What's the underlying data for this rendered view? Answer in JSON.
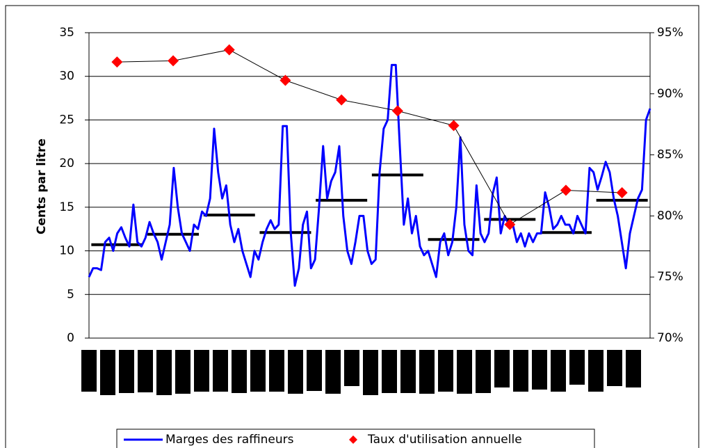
{
  "chart_data": {
    "type": "line",
    "y_label": "Cents par litre",
    "ylim": [
      0,
      35
    ],
    "yticks": [
      0,
      5,
      10,
      15,
      20,
      25,
      30,
      35
    ],
    "y2lim": [
      70,
      95
    ],
    "y2ticks": [
      {
        "value": 70,
        "label": "70%"
      },
      {
        "value": 75,
        "label": "75%"
      },
      {
        "value": 80,
        "label": "80%"
      },
      {
        "value": 85,
        "label": "85%"
      },
      {
        "value": 90,
        "label": "90%"
      },
      {
        "value": 95,
        "label": "95%"
      }
    ],
    "grid": true,
    "legend": "bottom",
    "series": [
      {
        "name": "Marges des raffineurs",
        "color": "#0000ff",
        "values": [
          7,
          8,
          8,
          7.8,
          11,
          11.5,
          10,
          12,
          12.7,
          11.5,
          10.5,
          15.3,
          11,
          10.5,
          11.5,
          13.3,
          12,
          11,
          9,
          11,
          13,
          19.5,
          15,
          12,
          11,
          10,
          13,
          12.5,
          14.5,
          14,
          16,
          24,
          19,
          16,
          17.5,
          13,
          11,
          12.5,
          10,
          8.5,
          7,
          10,
          9,
          11,
          12.5,
          13.5,
          12.5,
          13,
          24.3,
          24.3,
          12,
          6,
          8,
          13,
          14.5,
          8,
          9,
          15,
          22,
          16,
          18,
          19,
          22,
          14,
          10,
          8.5,
          11,
          14,
          14,
          10,
          8.5,
          9,
          19,
          24,
          25,
          31.3,
          31.3,
          22,
          13,
          16,
          12,
          14,
          10.5,
          9.5,
          10,
          8.5,
          7,
          11,
          12,
          9.5,
          11,
          15,
          23,
          13,
          10,
          9.5,
          17.5,
          12,
          11,
          12,
          16.5,
          18.4,
          12,
          14,
          13,
          13,
          11,
          12,
          10.5,
          12,
          11,
          12,
          12,
          16.7,
          15,
          12.5,
          13,
          14,
          13,
          13,
          12,
          14,
          13,
          12,
          19.5,
          19,
          17,
          18.5,
          20.2,
          19,
          16,
          14,
          11,
          8,
          12,
          14,
          16,
          17,
          25,
          26.3
        ]
      },
      {
        "name": "Taux d'utilisation annuelle",
        "color": "#ff0000",
        "axis": "y2",
        "values": [
          92.6,
          92.7,
          93.6,
          91.1,
          89.5,
          88.6,
          87.4,
          79.3,
          82.1,
          81.9
        ]
      }
    ],
    "annual_averages": {
      "color": "#000000",
      "values": [
        10.7,
        11.9,
        14.1,
        12.1,
        15.8,
        18.7,
        11.3,
        13.6,
        12.1,
        15.8
      ]
    }
  }
}
